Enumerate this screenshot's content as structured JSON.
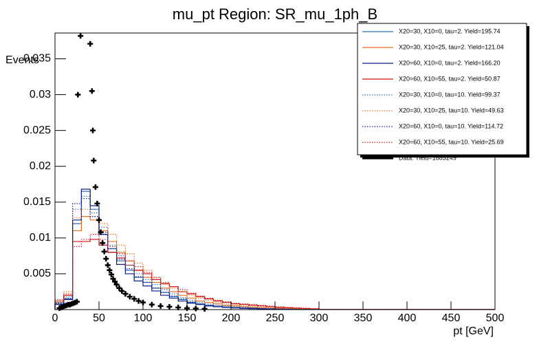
{
  "chart_data": {
    "type": "histogram",
    "title": "mu_pt Region: SR_mu_1ph_B",
    "xlabel": "pt [GeV]",
    "ylabel": "Events",
    "xlim": [
      0,
      500
    ],
    "ylim": [
      0,
      0.0386
    ],
    "xticks": [
      0,
      50,
      100,
      150,
      200,
      250,
      300,
      350,
      400,
      450,
      500
    ],
    "yticks": [
      0.005,
      0.01,
      0.015,
      0.02,
      0.025,
      0.03,
      0.035
    ],
    "bins": [
      0,
      10,
      20,
      30,
      40,
      50,
      60,
      70,
      80,
      90,
      100,
      110,
      120,
      130,
      140,
      150,
      160,
      170,
      180,
      190,
      200,
      210,
      220,
      230,
      240,
      250,
      260,
      270,
      280,
      290,
      300,
      500
    ],
    "series": [
      {
        "name": "X20=30, X10=0, tau=2. Yield=195.74",
        "color": "#2a6fb0",
        "style": "solid",
        "values": [
          0.0008,
          0.0015,
          0.012,
          0.0165,
          0.014,
          0.0105,
          0.0085,
          0.0068,
          0.0055,
          0.0045,
          0.0038,
          0.003,
          0.0024,
          0.0018,
          0.0014,
          0.001,
          0.0008,
          0.0006,
          0.0004,
          0.0003,
          0.00025,
          0.0002,
          0.00015,
          0.0001,
          0.0001,
          8e-05,
          5e-05,
          4e-05,
          3e-05,
          2e-05,
          1e-05
        ]
      },
      {
        "name": "X20=30, X10=25, tau=2. Yield=121.04",
        "color": "#e8701e",
        "style": "solid",
        "values": [
          0.001,
          0.002,
          0.011,
          0.013,
          0.0125,
          0.011,
          0.0095,
          0.008,
          0.0068,
          0.0055,
          0.0045,
          0.0038,
          0.003,
          0.0025,
          0.002,
          0.0016,
          0.0012,
          0.001,
          0.0008,
          0.0006,
          0.0005,
          0.0004,
          0.0003,
          0.00025,
          0.0002,
          0.00015,
          0.0001,
          8e-05,
          5e-05,
          4e-05,
          2e-05
        ]
      },
      {
        "name": "X20=60, X10=0, tau=2. Yield=166.20",
        "color": "#0a1a8c",
        "style": "solid",
        "values": [
          0.0007,
          0.0014,
          0.0125,
          0.0168,
          0.0145,
          0.0105,
          0.008,
          0.0063,
          0.005,
          0.004,
          0.0033,
          0.0026,
          0.002,
          0.0016,
          0.0012,
          0.0009,
          0.0007,
          0.0005,
          0.0004,
          0.0003,
          0.00022,
          0.00017,
          0.00013,
          0.0001,
          8e-05,
          6e-05,
          5e-05,
          3e-05,
          2e-05,
          2e-05,
          1e-05
        ]
      },
      {
        "name": "X20=60, X10=55, tau=2. Yield=50.87",
        "color": "#cc1010",
        "style": "solid",
        "values": [
          0.0012,
          0.002,
          0.0095,
          0.0095,
          0.0098,
          0.009,
          0.008,
          0.0072,
          0.0062,
          0.0055,
          0.005,
          0.0042,
          0.0036,
          0.0032,
          0.0025,
          0.0022,
          0.0018,
          0.0015,
          0.0012,
          0.001,
          0.0008,
          0.0007,
          0.0006,
          0.0005,
          0.0004,
          0.0003,
          0.00025,
          0.0002,
          0.00015,
          0.0001,
          3e-05
        ]
      },
      {
        "name": "X20=30, X10=0, tau=10. Yield=99.37",
        "color": "#2a6fb0",
        "style": "dotted",
        "values": [
          0.001,
          0.0018,
          0.014,
          0.0158,
          0.0135,
          0.0115,
          0.009,
          0.0075,
          0.0062,
          0.005,
          0.0042,
          0.0035,
          0.0028,
          0.0022,
          0.0017,
          0.0013,
          0.001,
          0.0008,
          0.0006,
          0.0005,
          0.0004,
          0.0003,
          0.00025,
          0.0002,
          0.00015,
          0.0001,
          8e-05,
          6e-05,
          4e-05,
          3e-05,
          1e-05
        ]
      },
      {
        "name": "X20=30, X10=25, tau=10. Yield=49.63",
        "color": "#e8701e",
        "style": "dotted",
        "values": [
          0.0012,
          0.0025,
          0.0128,
          0.014,
          0.013,
          0.012,
          0.0105,
          0.009,
          0.0078,
          0.0065,
          0.0055,
          0.0045,
          0.0037,
          0.003,
          0.0025,
          0.002,
          0.0016,
          0.0013,
          0.001,
          0.0008,
          0.0006,
          0.0005,
          0.0004,
          0.0003,
          0.00025,
          0.0002,
          0.00015,
          0.0001,
          8e-05,
          5e-05,
          2e-05
        ]
      },
      {
        "name": "X20=60, X10=0, tau=10. Yield=114.72",
        "color": "#0a1a8c",
        "style": "dotted",
        "values": [
          0.0009,
          0.0016,
          0.0148,
          0.0155,
          0.013,
          0.0108,
          0.0085,
          0.007,
          0.0057,
          0.0046,
          0.0038,
          0.003,
          0.0024,
          0.0019,
          0.0015,
          0.0011,
          0.0008,
          0.0006,
          0.0005,
          0.0004,
          0.0003,
          0.00022,
          0.00017,
          0.00013,
          0.0001,
          8e-05,
          6e-05,
          4e-05,
          3e-05,
          2e-05,
          1e-05
        ]
      },
      {
        "name": "X20=60, X10=55, tau=10. Yield=25.69",
        "color": "#cc1010",
        "style": "dotted",
        "values": [
          0.0014,
          0.0022,
          0.0088,
          0.0098,
          0.0105,
          0.0098,
          0.0088,
          0.0078,
          0.0068,
          0.006,
          0.0052,
          0.0045,
          0.0038,
          0.0032,
          0.0028,
          0.0023,
          0.0019,
          0.0016,
          0.0013,
          0.0011,
          0.0009,
          0.0008,
          0.0007,
          0.0006,
          0.0005,
          0.0004,
          0.0003,
          0.00025,
          0.0002,
          0.00015,
          4e-05
        ]
      }
    ],
    "data": {
      "name": "Data. Yield=1885249",
      "color": "#000000",
      "x": [
        5,
        7,
        9,
        11,
        13,
        15,
        17,
        19,
        21,
        23,
        25,
        26,
        29,
        40,
        42,
        43,
        44,
        46,
        48,
        50,
        52,
        54,
        56,
        58,
        60,
        62,
        64,
        66,
        68,
        70,
        73,
        76,
        80,
        85,
        90,
        95,
        100,
        110,
        120,
        130,
        140,
        150,
        160,
        170
      ],
      "values": [
        0.0002,
        0.0003,
        0.0004,
        0.0005,
        0.0006,
        0.0007,
        0.0007,
        0.0008,
        0.0009,
        0.001,
        0.0011,
        0.03,
        0.0382,
        0.0371,
        0.0305,
        0.025,
        0.0208,
        0.0171,
        0.0148,
        0.0125,
        0.0108,
        0.0093,
        0.0081,
        0.0071,
        0.0062,
        0.0055,
        0.0049,
        0.0043,
        0.0039,
        0.0035,
        0.003,
        0.0026,
        0.0022,
        0.0018,
        0.0015,
        0.0012,
        0.001,
        0.0007,
        0.0005,
        0.0004,
        0.0003,
        0.0002,
        0.00015,
        0.0001
      ]
    }
  }
}
